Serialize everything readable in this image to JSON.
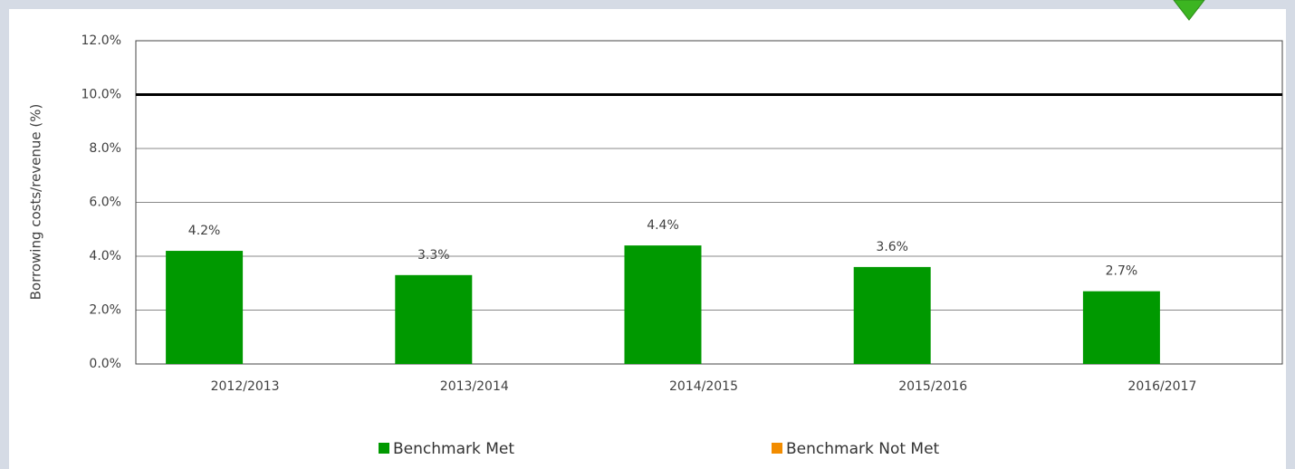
{
  "chart_data": {
    "type": "bar",
    "y_label": "Borrowing costs/revenue (%)",
    "categories": [
      "2012/2013",
      "2013/2014",
      "2014/2015",
      "2015/2016",
      "2016/2017"
    ],
    "series": [
      {
        "name": "Benchmark Met",
        "color": "#009900",
        "values": [
          4.2,
          3.3,
          4.4,
          3.6,
          2.7
        ],
        "value_labels": [
          "4.2%",
          "3.3%",
          "4.4%",
          "3.6%",
          "2.7%"
        ]
      },
      {
        "name": "Benchmark Not Met",
        "color": "#f28c00",
        "values": [
          null,
          null,
          null,
          null,
          null
        ]
      }
    ],
    "reference_line": 10,
    "ylim": [
      0,
      12
    ],
    "yticks": [
      {
        "value": 0,
        "label": "0.0%"
      },
      {
        "value": 2,
        "label": "2.0%"
      },
      {
        "value": 4,
        "label": "4.0%"
      },
      {
        "value": 6,
        "label": "6.0%"
      },
      {
        "value": 8,
        "label": "8.0%"
      },
      {
        "value": 10,
        "label": "10.0%"
      },
      {
        "value": 12,
        "label": "12.0%"
      }
    ],
    "grid": true
  }
}
